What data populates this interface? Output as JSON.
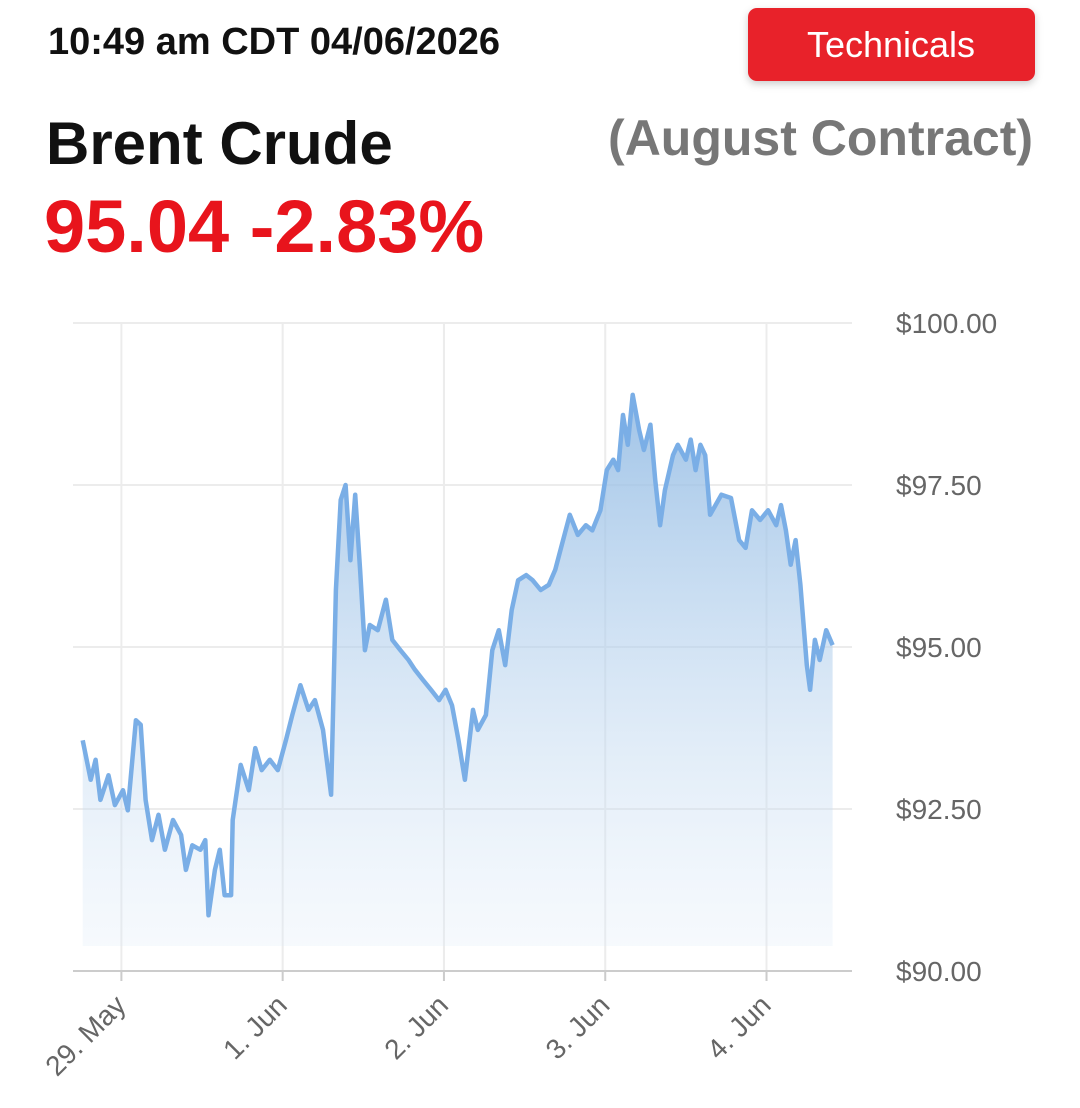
{
  "header": {
    "timestamp": "10:49 am CDT 04/06/2026",
    "button": "Technicals",
    "title": "Brent Crude",
    "subtitle": "(August Contract)",
    "price": "95.04",
    "change": "-2.83%"
  },
  "chart_data": {
    "type": "area",
    "color": "#7aaee6",
    "grid": true,
    "x": [
      -0.24,
      -0.19,
      -0.16,
      -0.13,
      -0.08,
      -0.04,
      0.01,
      0.04,
      0.09,
      0.12,
      0.15,
      0.19,
      0.23,
      0.27,
      0.32,
      0.37,
      0.4,
      0.44,
      0.49,
      0.52,
      0.54,
      0.58,
      0.61,
      0.64,
      0.68,
      0.69,
      0.74,
      0.79,
      0.83,
      0.87,
      0.92,
      0.97,
      1.02,
      1.06,
      1.11,
      1.16,
      1.2,
      1.25,
      1.3,
      1.33,
      1.36,
      1.39,
      1.42,
      1.45,
      1.48,
      1.51,
      1.54,
      1.59,
      1.64,
      1.68,
      1.73,
      1.78,
      1.82,
      1.87,
      1.92,
      1.97,
      2.01,
      2.05,
      2.09,
      2.13,
      2.18,
      2.21,
      2.26,
      2.3,
      2.34,
      2.38,
      2.42,
      2.46,
      2.51,
      2.55,
      2.6,
      2.65,
      2.69,
      2.73,
      2.78,
      2.83,
      2.88,
      2.92,
      2.97,
      3.01,
      3.05,
      3.08,
      3.11,
      3.14,
      3.17,
      3.21,
      3.24,
      3.28,
      3.31,
      3.34,
      3.37,
      3.42,
      3.45,
      3.5,
      3.53,
      3.56,
      3.59,
      3.62,
      3.65,
      3.72,
      3.78,
      3.83,
      3.87,
      3.91,
      3.96,
      4.01,
      4.06,
      4.09,
      4.12,
      4.15,
      4.18,
      4.21,
      4.25,
      4.27,
      4.3,
      4.33,
      4.37,
      4.41
    ],
    "values": [
      93.56,
      92.95,
      93.26,
      92.64,
      93.02,
      92.56,
      92.79,
      92.48,
      93.87,
      93.8,
      92.64,
      92.02,
      92.41,
      91.87,
      92.33,
      92.1,
      91.56,
      91.94,
      91.87,
      92.02,
      90.86,
      91.56,
      91.87,
      91.17,
      91.17,
      92.33,
      93.18,
      92.79,
      93.44,
      93.1,
      93.26,
      93.1,
      93.56,
      93.95,
      94.41,
      94.03,
      94.18,
      93.72,
      92.72,
      95.88,
      97.27,
      97.5,
      96.34,
      97.35,
      96.19,
      94.95,
      95.34,
      95.26,
      95.73,
      95.11,
      94.95,
      94.8,
      94.65,
      94.49,
      94.34,
      94.18,
      94.34,
      94.1,
      93.56,
      92.95,
      94.03,
      93.72,
      93.95,
      94.95,
      95.26,
      94.72,
      95.57,
      96.03,
      96.11,
      96.03,
      95.88,
      95.96,
      96.19,
      96.57,
      97.04,
      96.73,
      96.88,
      96.8,
      97.11,
      97.73,
      97.89,
      97.73,
      98.58,
      98.12,
      98.89,
      98.35,
      98.04,
      98.43,
      97.58,
      96.88,
      97.42,
      97.96,
      98.12,
      97.89,
      98.2,
      97.73,
      98.12,
      97.96,
      97.04,
      97.35,
      97.3,
      96.65,
      96.53,
      97.11,
      96.96,
      97.11,
      96.88,
      97.19,
      96.8,
      96.27,
      96.65,
      95.96,
      94.72,
      94.34,
      95.11,
      94.8,
      95.26,
      95.03
    ],
    "xlim": [
      -0.3,
      4.53
    ],
    "xticks": [
      {
        "value": 0,
        "label": "29. May"
      },
      {
        "value": 1,
        "label": "1. Jun"
      },
      {
        "value": 2,
        "label": "2. Jun"
      },
      {
        "value": 3,
        "label": "3. Jun"
      },
      {
        "value": 4,
        "label": "4. Jun"
      }
    ],
    "ylim": [
      90,
      100
    ],
    "yticks": [
      {
        "value": 90,
        "label": "$90.00"
      },
      {
        "value": 92.5,
        "label": "$92.50"
      },
      {
        "value": 95,
        "label": "$95.00"
      },
      {
        "value": 97.5,
        "label": "$97.50"
      },
      {
        "value": 100,
        "label": "$100.00"
      }
    ]
  }
}
